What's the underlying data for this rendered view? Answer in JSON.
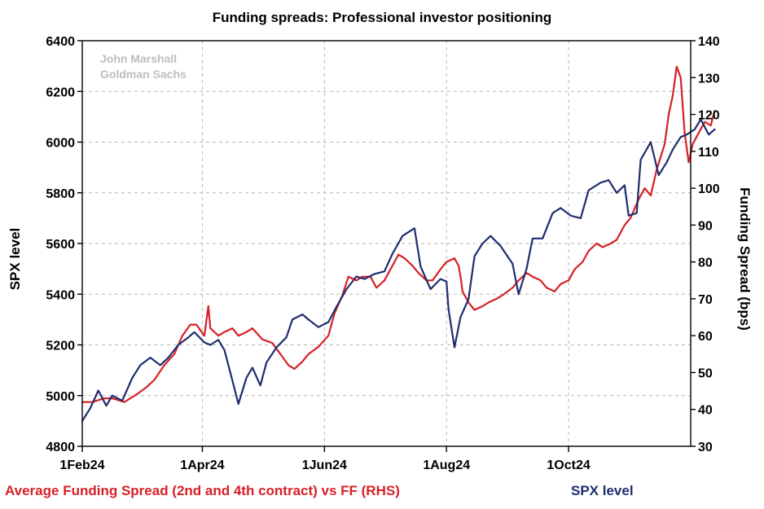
{
  "chart_data": {
    "type": "line",
    "title": "Funding spreads: Professional investor positioning",
    "watermark": [
      "John Marshall",
      "Goldman Sachs"
    ],
    "ylabel": "SPX level",
    "y2label": "Funding Spread (bps)",
    "ylim": [
      4800,
      6400
    ],
    "y2lim": [
      30,
      140
    ],
    "yticks": [
      "4800",
      "5000",
      "5200",
      "5400",
      "5600",
      "5800",
      "6000",
      "6200",
      "6400"
    ],
    "y2ticks": [
      "30",
      "40",
      "50",
      "60",
      "70",
      "80",
      "90",
      "100",
      "110",
      "120",
      "130",
      "140"
    ],
    "xlim": [
      "2024-02-01",
      "2024-12-01"
    ],
    "xticks": [
      {
        "label": "1Feb24",
        "date": "2024-02-01"
      },
      {
        "label": "1Apr24",
        "date": "2024-04-01"
      },
      {
        "label": "1Jun24",
        "date": "2024-06-01"
      },
      {
        "label": "1Aug24",
        "date": "2024-08-01"
      },
      {
        "label": "1Oct24",
        "date": "2024-10-01"
      }
    ],
    "grid": true,
    "legend_position": "bottom",
    "series": [
      {
        "name": "Average Funding Spread (2nd and 4th contract) vs FF (RHS)",
        "axis": "right",
        "color": "#d62027",
        "points": [
          [
            "2024-02-01",
            42
          ],
          [
            "2024-02-06",
            42
          ],
          [
            "2024-02-12",
            43
          ],
          [
            "2024-02-16",
            43
          ],
          [
            "2024-02-22",
            42
          ],
          [
            "2024-02-28",
            44
          ],
          [
            "2024-03-04",
            46
          ],
          [
            "2024-03-08",
            48
          ],
          [
            "2024-03-13",
            52
          ],
          [
            "2024-03-18",
            55
          ],
          [
            "2024-03-22",
            60
          ],
          [
            "2024-03-26",
            63
          ],
          [
            "2024-03-29",
            63
          ],
          [
            "2024-04-02",
            60
          ],
          [
            "2024-04-04",
            68
          ],
          [
            "2024-04-05",
            62
          ],
          [
            "2024-04-09",
            60
          ],
          [
            "2024-04-12",
            61
          ],
          [
            "2024-04-16",
            62
          ],
          [
            "2024-04-19",
            60
          ],
          [
            "2024-04-23",
            61
          ],
          [
            "2024-04-26",
            62
          ],
          [
            "2024-05-01",
            59
          ],
          [
            "2024-05-06",
            58
          ],
          [
            "2024-05-10",
            55
          ],
          [
            "2024-05-14",
            52
          ],
          [
            "2024-05-17",
            51
          ],
          [
            "2024-05-21",
            53
          ],
          [
            "2024-05-24",
            55
          ],
          [
            "2024-05-29",
            57
          ],
          [
            "2024-06-03",
            60
          ],
          [
            "2024-06-06",
            66
          ],
          [
            "2024-06-10",
            71
          ],
          [
            "2024-06-13",
            76
          ],
          [
            "2024-06-17",
            75
          ],
          [
            "2024-06-20",
            76
          ],
          [
            "2024-06-24",
            76
          ],
          [
            "2024-06-27",
            73
          ],
          [
            "2024-07-01",
            75
          ],
          [
            "2024-07-04",
            78
          ],
          [
            "2024-07-08",
            82
          ],
          [
            "2024-07-11",
            81
          ],
          [
            "2024-07-15",
            79
          ],
          [
            "2024-07-18",
            77
          ],
          [
            "2024-07-22",
            75
          ],
          [
            "2024-07-25",
            75
          ],
          [
            "2024-07-29",
            78
          ],
          [
            "2024-08-01",
            80
          ],
          [
            "2024-08-05",
            81
          ],
          [
            "2024-08-07",
            79
          ],
          [
            "2024-08-08",
            76
          ],
          [
            "2024-08-09",
            72
          ],
          [
            "2024-08-12",
            69
          ],
          [
            "2024-08-15",
            67
          ],
          [
            "2024-08-19",
            68
          ],
          [
            "2024-08-22",
            69
          ],
          [
            "2024-08-26",
            70
          ],
          [
            "2024-08-29",
            71
          ],
          [
            "2024-09-03",
            73
          ],
          [
            "2024-09-06",
            75
          ],
          [
            "2024-09-10",
            77
          ],
          [
            "2024-09-13",
            76
          ],
          [
            "2024-09-17",
            75
          ],
          [
            "2024-09-20",
            73
          ],
          [
            "2024-09-24",
            72
          ],
          [
            "2024-09-27",
            74
          ],
          [
            "2024-10-01",
            75
          ],
          [
            "2024-10-04",
            78
          ],
          [
            "2024-10-08",
            80
          ],
          [
            "2024-10-11",
            83
          ],
          [
            "2024-10-15",
            85
          ],
          [
            "2024-10-18",
            84
          ],
          [
            "2024-10-22",
            85
          ],
          [
            "2024-10-25",
            86
          ],
          [
            "2024-10-29",
            90
          ],
          [
            "2024-11-01",
            92
          ],
          [
            "2024-11-05",
            97
          ],
          [
            "2024-11-08",
            100
          ],
          [
            "2024-11-11",
            98
          ],
          [
            "2024-11-14",
            105
          ],
          [
            "2024-11-18",
            112
          ],
          [
            "2024-11-20",
            120
          ],
          [
            "2024-11-22",
            125
          ],
          [
            "2024-11-24",
            133
          ],
          [
            "2024-11-26",
            130
          ],
          [
            "2024-11-28",
            115
          ],
          [
            "2024-11-30",
            107
          ],
          [
            "2024-12-02",
            112
          ],
          [
            "2024-12-05",
            115
          ],
          [
            "2024-12-08",
            118
          ],
          [
            "2024-12-11",
            117
          ],
          [
            "2024-12-13",
            121
          ]
        ]
      },
      {
        "name": "SPX level",
        "axis": "left",
        "color": "#1f2d6e",
        "points": [
          [
            "2024-02-01",
            4900
          ],
          [
            "2024-02-05",
            4950
          ],
          [
            "2024-02-09",
            5020
          ],
          [
            "2024-02-13",
            4960
          ],
          [
            "2024-02-16",
            5000
          ],
          [
            "2024-02-21",
            4980
          ],
          [
            "2024-02-26",
            5070
          ],
          [
            "2024-03-01",
            5120
          ],
          [
            "2024-03-06",
            5150
          ],
          [
            "2024-03-11",
            5120
          ],
          [
            "2024-03-15",
            5150
          ],
          [
            "2024-03-20",
            5200
          ],
          [
            "2024-03-25",
            5230
          ],
          [
            "2024-03-28",
            5250
          ],
          [
            "2024-04-02",
            5210
          ],
          [
            "2024-04-05",
            5200
          ],
          [
            "2024-04-09",
            5220
          ],
          [
            "2024-04-12",
            5180
          ],
          [
            "2024-04-16",
            5060
          ],
          [
            "2024-04-19",
            4967
          ],
          [
            "2024-04-23",
            5070
          ],
          [
            "2024-04-26",
            5110
          ],
          [
            "2024-04-30",
            5040
          ],
          [
            "2024-05-03",
            5130
          ],
          [
            "2024-05-08",
            5190
          ],
          [
            "2024-05-13",
            5230
          ],
          [
            "2024-05-16",
            5300
          ],
          [
            "2024-05-21",
            5320
          ],
          [
            "2024-05-24",
            5300
          ],
          [
            "2024-05-29",
            5270
          ],
          [
            "2024-06-03",
            5290
          ],
          [
            "2024-06-07",
            5350
          ],
          [
            "2024-06-12",
            5420
          ],
          [
            "2024-06-17",
            5470
          ],
          [
            "2024-06-21",
            5460
          ],
          [
            "2024-06-26",
            5480
          ],
          [
            "2024-07-01",
            5490
          ],
          [
            "2024-07-05",
            5560
          ],
          [
            "2024-07-10",
            5630
          ],
          [
            "2024-07-16",
            5660
          ],
          [
            "2024-07-19",
            5510
          ],
          [
            "2024-07-24",
            5420
          ],
          [
            "2024-07-29",
            5460
          ],
          [
            "2024-08-01",
            5450
          ],
          [
            "2024-08-02",
            5340
          ],
          [
            "2024-08-05",
            5190
          ],
          [
            "2024-08-08",
            5310
          ],
          [
            "2024-08-12",
            5380
          ],
          [
            "2024-08-15",
            5550
          ],
          [
            "2024-08-19",
            5600
          ],
          [
            "2024-08-23",
            5630
          ],
          [
            "2024-08-28",
            5590
          ],
          [
            "2024-09-03",
            5520
          ],
          [
            "2024-09-06",
            5400
          ],
          [
            "2024-09-10",
            5500
          ],
          [
            "2024-09-13",
            5620
          ],
          [
            "2024-09-18",
            5620
          ],
          [
            "2024-09-23",
            5720
          ],
          [
            "2024-09-27",
            5740
          ],
          [
            "2024-10-02",
            5710
          ],
          [
            "2024-10-07",
            5700
          ],
          [
            "2024-10-11",
            5810
          ],
          [
            "2024-10-17",
            5840
          ],
          [
            "2024-10-21",
            5850
          ],
          [
            "2024-10-25",
            5800
          ],
          [
            "2024-10-29",
            5830
          ],
          [
            "2024-10-31",
            5710
          ],
          [
            "2024-11-04",
            5720
          ],
          [
            "2024-11-06",
            5930
          ],
          [
            "2024-11-11",
            6000
          ],
          [
            "2024-11-15",
            5870
          ],
          [
            "2024-11-19",
            5920
          ],
          [
            "2024-11-22",
            5970
          ],
          [
            "2024-11-26",
            6020
          ],
          [
            "2024-11-29",
            6030
          ],
          [
            "2024-12-03",
            6050
          ],
          [
            "2024-12-06",
            6090
          ],
          [
            "2024-12-10",
            6030
          ],
          [
            "2024-12-13",
            6050
          ]
        ]
      }
    ]
  }
}
